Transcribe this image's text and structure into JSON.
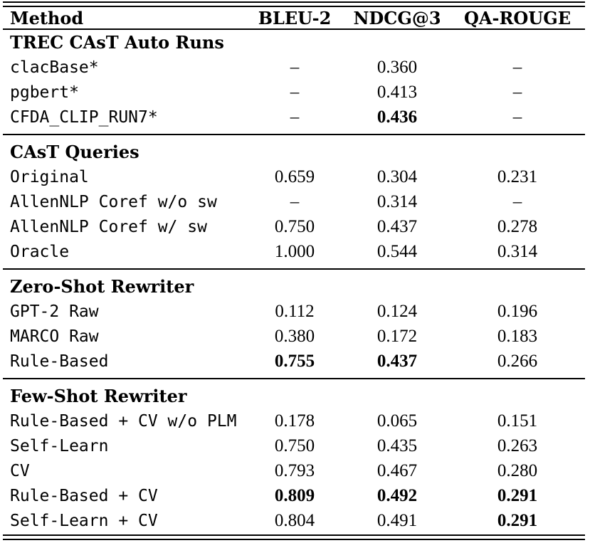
{
  "page": {
    "background_color": "#ffffff",
    "text_color": "#000000"
  },
  "table": {
    "columns": [
      {
        "label": "Method"
      },
      {
        "label": "BLEU-2"
      },
      {
        "label": "NDCG@3"
      },
      {
        "label": "QA-ROUGE"
      }
    ],
    "sections": [
      {
        "header": "TREC CAsT Auto Runs",
        "rows": [
          {
            "cells": [
              "clacBase*",
              "–",
              "0.360",
              "–"
            ],
            "bold": [
              false,
              false,
              false,
              false
            ]
          },
          {
            "cells": [
              "pgbert*",
              "–",
              "0.413",
              "–"
            ],
            "bold": [
              false,
              false,
              false,
              false
            ]
          },
          {
            "cells": [
              "CFDA_CLIP_RUN7*",
              "–",
              "0.436",
              "–"
            ],
            "bold": [
              false,
              false,
              true,
              false
            ]
          }
        ]
      },
      {
        "header": "CAsT Queries",
        "rows": [
          {
            "cells": [
              "Original",
              "0.659",
              "0.304",
              "0.231"
            ],
            "bold": [
              false,
              false,
              false,
              false
            ]
          },
          {
            "cells": [
              "AllenNLP Coref w/o sw",
              "–",
              "0.314",
              "–"
            ],
            "bold": [
              false,
              false,
              false,
              false
            ]
          },
          {
            "cells": [
              "AllenNLP Coref w/ sw",
              "0.750",
              "0.437",
              "0.278"
            ],
            "bold": [
              false,
              false,
              false,
              false
            ]
          },
          {
            "cells": [
              "Oracle",
              "1.000",
              "0.544",
              "0.314"
            ],
            "bold": [
              false,
              false,
              false,
              false
            ]
          }
        ]
      },
      {
        "header": "Zero-Shot Rewriter",
        "rows": [
          {
            "cells": [
              "GPT-2 Raw",
              "0.112",
              "0.124",
              "0.196"
            ],
            "bold": [
              false,
              false,
              false,
              false
            ]
          },
          {
            "cells": [
              "MARCO Raw",
              "0.380",
              "0.172",
              "0.183"
            ],
            "bold": [
              false,
              false,
              false,
              false
            ]
          },
          {
            "cells": [
              "Rule-Based",
              "0.755",
              "0.437",
              "0.266"
            ],
            "bold": [
              false,
              true,
              true,
              false
            ]
          }
        ]
      },
      {
        "header": "Few-Shot Rewriter",
        "rows": [
          {
            "cells": [
              "Rule-Based + CV w/o PLM",
              "0.178",
              "0.065",
              "0.151"
            ],
            "bold": [
              false,
              false,
              false,
              false
            ]
          },
          {
            "cells": [
              "Self-Learn",
              "0.750",
              "0.435",
              "0.263"
            ],
            "bold": [
              false,
              false,
              false,
              false
            ]
          },
          {
            "cells": [
              "CV",
              "0.793",
              "0.467",
              "0.280"
            ],
            "bold": [
              false,
              false,
              false,
              false
            ]
          },
          {
            "cells": [
              "Rule-Based + CV",
              "0.809",
              "0.492",
              "0.291"
            ],
            "bold": [
              false,
              true,
              true,
              true
            ]
          },
          {
            "cells": [
              "Self-Learn + CV",
              "0.804",
              "0.491",
              "0.291"
            ],
            "bold": [
              false,
              false,
              false,
              true
            ]
          }
        ]
      }
    ]
  }
}
